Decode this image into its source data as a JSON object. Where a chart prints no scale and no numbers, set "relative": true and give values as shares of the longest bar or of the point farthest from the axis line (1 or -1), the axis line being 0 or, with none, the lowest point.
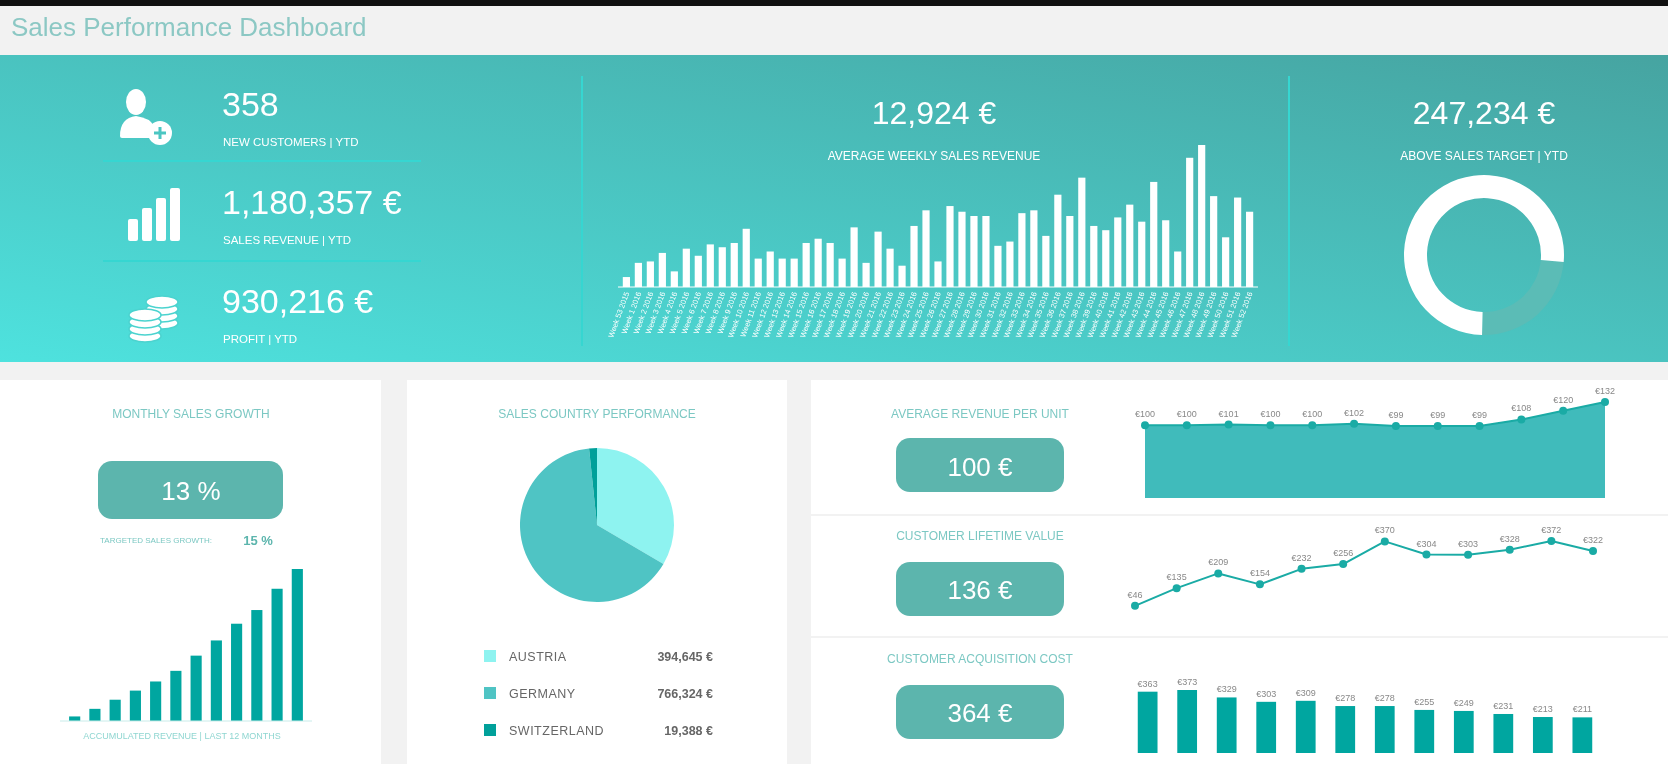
{
  "chart_data": [
    {
      "type": "other",
      "title": "Sales Performance Dashboard",
      "annotations": [
        "358",
        "NEW CUSTOMERS | YTD",
        "1,180,357 €",
        "SALES REVENUE | YTD",
        "930,216 €",
        "PROFIT | YTD"
      ]
    },
    {
      "type": "bar",
      "title": "AVERAGE WEEKLY SALES REVENUE",
      "annotations": [
        "12,924 €"
      ],
      "relative": true,
      "color": "#ffffff",
      "categories": [
        "Week 53 2015",
        "Week 1 2016",
        "Week 2 2016",
        "Week 3 2016",
        "Week 4 2016",
        "Week 5 2016",
        "Week 6 2016",
        "Week 7 2016",
        "Week 8 2016",
        "Week 9 2016",
        "Week 10 2016",
        "Week 11 2016",
        "Week 12 2016",
        "Week 13 2016",
        "Week 14 2016",
        "Week 15 2016",
        "Week 16 2016",
        "Week 17 2016",
        "Week 18 2016",
        "Week 19 2016",
        "Week 20 2016",
        "Week 21 2016",
        "Week 22 2016",
        "Week 23 2016",
        "Week 24 2016",
        "Week 25 2016",
        "Week 26 2016",
        "Week 27 2016",
        "Week 28 2016",
        "Week 29 2016",
        "Week 30 2016",
        "Week 31 2016",
        "Week 32 2016",
        "Week 33 2016",
        "Week 34 2016",
        "Week 35 2016",
        "Week 36 2016",
        "Week 37 2016",
        "Week 38 2016",
        "Week 39 2016",
        "Week 40 2016",
        "Week 41 2016",
        "Week 42 2016",
        "Week 43 2016",
        "Week 44 2016",
        "Week 45 2016",
        "Week 46 2016",
        "Week 47 2016",
        "Week 48 2016",
        "Week 49 2016",
        "Week 50 2016",
        "Week 51 2016",
        "Week 52 2016"
      ],
      "values": [
        0.07,
        0.17,
        0.18,
        0.24,
        0.11,
        0.27,
        0.22,
        0.3,
        0.28,
        0.31,
        0.41,
        0.2,
        0.25,
        0.2,
        0.2,
        0.31,
        0.34,
        0.31,
        0.2,
        0.42,
        0.17,
        0.39,
        0.27,
        0.15,
        0.43,
        0.54,
        0.18,
        0.57,
        0.53,
        0.5,
        0.5,
        0.29,
        0.32,
        0.52,
        0.54,
        0.36,
        0.65,
        0.5,
        0.77,
        0.43,
        0.4,
        0.49,
        0.58,
        0.46,
        0.74,
        0.47,
        0.25,
        0.91,
        1,
        0.64,
        0.35,
        0.63,
        0.53
      ]
    },
    {
      "type": "donut",
      "title": "ABOVE SALES TARGET | YTD",
      "annotations": [
        "247,234 €"
      ],
      "categories": [
        null,
        null
      ],
      "values": [
        24,
        76
      ],
      "colors": [
        "#5bbcb6",
        "#ffffff"
      ]
    },
    {
      "type": "bar",
      "title": "MONTHLY SALES GROWTH",
      "annotations": [
        "13 %",
        "TARGETED SALES GROWTH:",
        "15 %"
      ],
      "xlabel": "ACCUMULATED REVENUE | LAST 12 MONTHS",
      "relative": true,
      "color": "#00a6a0",
      "categories": [
        null,
        null,
        null,
        null,
        null,
        null,
        null,
        null,
        null,
        null,
        null,
        null
      ],
      "values": [
        0.03,
        0.08,
        0.14,
        0.2,
        0.26,
        0.33,
        0.43,
        0.53,
        0.64,
        0.73,
        0.87,
        1
      ]
    },
    {
      "type": "pie",
      "title": "SALES COUNTRY PERFORMANCE",
      "categories": [
        "AUSTRIA",
        "GERMANY",
        "SWITZERLAND"
      ],
      "values": [
        394645,
        766324,
        19388
      ],
      "value_labels": [
        "394,645 €",
        "766,324 €",
        "19,388 €"
      ],
      "colors": [
        "#8ef3f0",
        "#4fc4c4",
        "#00a09a"
      ],
      "legend": "bottom"
    },
    {
      "type": "area",
      "title": "AVERAGE REVENUE PER UNIT",
      "annotations": [
        "100 €"
      ],
      "color": "#40bbbb",
      "marker": "circle",
      "categories": [
        null,
        null,
        null,
        null,
        null,
        null,
        null,
        null,
        null,
        null,
        null,
        null
      ],
      "values": [
        100,
        100,
        101,
        100,
        100,
        102,
        99,
        99,
        99,
        108,
        120,
        132
      ],
      "value_labels": [
        "€100",
        "€100",
        "€101",
        "€100",
        "€100",
        "€102",
        "€99",
        "€99",
        "€99",
        "€108",
        "€120",
        "€132"
      ]
    },
    {
      "type": "line",
      "title": "CUSTOMER LIFETIME VALUE",
      "annotations": [
        "136 €"
      ],
      "color": "#1aaba5",
      "marker": "circle",
      "categories": [
        null,
        null,
        null,
        null,
        null,
        null,
        null,
        null,
        null,
        null,
        null,
        null
      ],
      "values": [
        46,
        135,
        209,
        154,
        232,
        256,
        370,
        304,
        303,
        328,
        372,
        322
      ],
      "value_labels": [
        "€46",
        "€135",
        "€209",
        "€154",
        "€232",
        "€256",
        "€370",
        "€304",
        "€303",
        "€328",
        "€372",
        "€322"
      ]
    },
    {
      "type": "bar",
      "title": "CUSTOMER ACQUISITION COST",
      "annotations": [
        "364 €"
      ],
      "color": "#00a6a0",
      "categories": [
        null,
        null,
        null,
        null,
        null,
        null,
        null,
        null,
        null,
        null,
        null,
        null
      ],
      "values": [
        363,
        373,
        329,
        303,
        309,
        278,
        278,
        255,
        249,
        231,
        213,
        211
      ],
      "value_labels": [
        "€363",
        "€373",
        "€329",
        "€303",
        "€309",
        "€278",
        "€278",
        "€255",
        "€249",
        "€231",
        "€213",
        "€211"
      ]
    }
  ]
}
